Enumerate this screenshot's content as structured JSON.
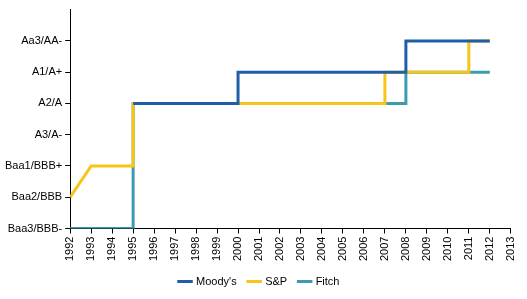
{
  "chart_data": {
    "type": "line",
    "series": [
      {
        "name": "Moody's",
        "color": "#1f5fa8",
        "x": [
          1995,
          2000,
          2000,
          2008,
          2008,
          2012
        ],
        "values": [
          5,
          5,
          6,
          6,
          7,
          7
        ]
      },
      {
        "name": "S&P",
        "color": "#f5c518",
        "x": [
          1992,
          1993,
          1995,
          1995,
          2007,
          2007,
          2011,
          2011,
          2012
        ],
        "values": [
          2,
          3,
          3,
          5,
          5,
          6,
          6,
          7,
          7
        ]
      },
      {
        "name": "Fitch",
        "color": "#3d9bb0",
        "x": [
          1992,
          1995,
          1995,
          2008,
          2008,
          2012
        ],
        "values": [
          1,
          1,
          5,
          5,
          6,
          6
        ]
      }
    ],
    "xlim": [
      1992,
      2013
    ],
    "xticks": [
      1992,
      1993,
      1994,
      1995,
      1996,
      1997,
      1998,
      1999,
      2000,
      2001,
      2002,
      2003,
      2004,
      2005,
      2006,
      2007,
      2008,
      2009,
      2010,
      2011,
      2012,
      2013
    ],
    "ylim": [
      1,
      8
    ],
    "yticks": [
      {
        "value": 1,
        "label": "Baa3/BBB-"
      },
      {
        "value": 2,
        "label": "Baa2/BBB"
      },
      {
        "value": 3,
        "label": "Baa1/BBB+"
      },
      {
        "value": 4,
        "label": "A3/A-"
      },
      {
        "value": 5,
        "label": "A2/A"
      },
      {
        "value": 6,
        "label": "A1/A+"
      },
      {
        "value": 7,
        "label": "Aa3/AA-"
      }
    ],
    "grid": false,
    "legend": "bottom"
  }
}
